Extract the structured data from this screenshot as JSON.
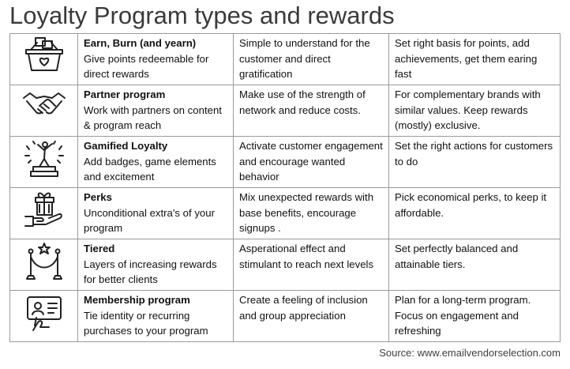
{
  "title": "Loyalty Program types and rewards",
  "source": "Source: www.emailvendorselection.com",
  "rows": [
    {
      "icon": "shopping-basket-icon",
      "name": "Earn, Burn (and yearn)",
      "desc": "Give points redeemable for direct rewards",
      "benefit": "Simple to understand for the customer and direct gratification",
      "tip": "Set right basis for points, add achievements, get them earing fast"
    },
    {
      "icon": "handshake-icon",
      "name": "Partner program",
      "desc": "Work with partners on content & program reach",
      "benefit": "Make use of the strength of network and reduce costs.",
      "tip": "For complementary brands with similar values. Keep rewards (mostly) exclusive."
    },
    {
      "icon": "celebration-trophy-icon",
      "name": "Gamified Loyalty",
      "desc": "Add badges, game elements and excitement",
      "benefit": "Activate customer engagement and encourage wanted behavior",
      "tip": "Set the right actions for customers to do"
    },
    {
      "icon": "gift-hand-icon",
      "name": "Perks",
      "desc": "Unconditional extra's of your program",
      "benefit": "Mix unexpected rewards with  base benefits, encourage  signups .",
      "tip": "Pick economical perks, to keep it affordable."
    },
    {
      "icon": "vip-rope-icon",
      "name": "Tiered",
      "desc": "Layers of increasing rewards for better clients",
      "benefit": "Asperational effect and stimulant to reach next levels",
      "tip": "Set perfectly balanced and attainable tiers."
    },
    {
      "icon": "membership-card-icon",
      "name": "Membership program",
      "desc": "Tie identity or recurring purchases to your program",
      "benefit": "Create a feeling of inclusion and group  appreciation",
      "tip": "Plan for a long-term program. Focus on engagement and refreshing"
    }
  ]
}
